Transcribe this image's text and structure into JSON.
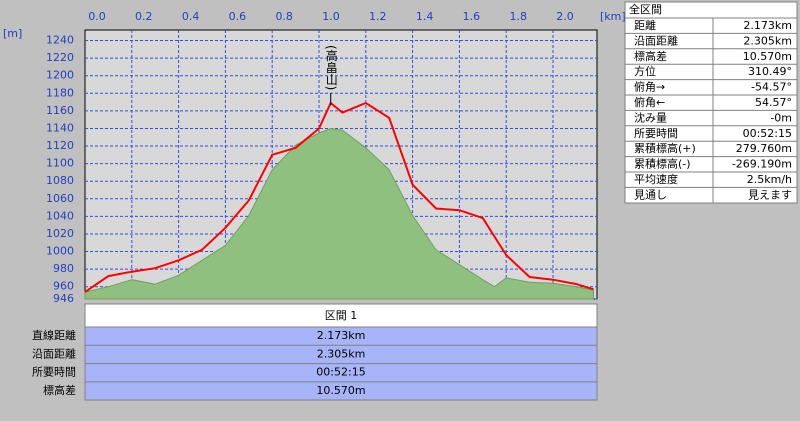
{
  "chart_data": {
    "type": "line",
    "xlabel": "[km]",
    "ylabel": "[m]",
    "x": [
      0,
      0.1,
      0.2,
      0.3,
      0.4,
      0.5,
      0.6,
      0.7,
      0.8,
      0.9,
      1.0,
      1.05,
      1.1,
      1.2,
      1.3,
      1.4,
      1.5,
      1.6,
      1.7,
      1.75,
      1.8,
      1.9,
      2.0,
      2.1,
      2.173
    ],
    "series": [
      {
        "color": "#90c080",
        "area": true,
        "values": [
          954,
          960,
          968,
          963,
          973,
          990,
          1007,
          1041,
          1093,
          1121,
          1135,
          1140,
          1138,
          1118,
          1093,
          1041,
          1002,
          985,
          968,
          960,
          970,
          965,
          964,
          960,
          956
        ]
      },
      {
        "color": "#ff0000",
        "area": false,
        "values": [
          954,
          972,
          977,
          981,
          990,
          1002,
          1027,
          1058,
          1110,
          1118,
          1140,
          1169,
          1158,
          1169,
          1152,
          1076,
          1049,
          1047,
          1038,
          1017,
          996,
          971,
          968,
          963,
          957
        ]
      }
    ],
    "xlim": [
      0,
      2.188
    ],
    "ylim": [
      946,
      1252
    ],
    "xticks": [
      {
        "value": 0,
        "label": "0.0"
      },
      0.2,
      0.4,
      0.6,
      0.8,
      {
        "value": 1,
        "label": "1.0"
      },
      1.2,
      1.4,
      1.6,
      1.8,
      {
        "value": 2,
        "label": "2.0"
      }
    ],
    "yticks": [
      946,
      960,
      980,
      1000,
      1020,
      1040,
      1060,
      1080,
      1100,
      1120,
      1140,
      1160,
      1180,
      1200,
      1220,
      1240
    ],
    "grid": true,
    "annotation": {
      "text": "(高畠山)",
      "x": 1.05
    }
  },
  "summary": {
    "title": "全区間",
    "rows": [
      [
        "距離",
        "2.173km"
      ],
      [
        "沿面距離",
        "2.305km"
      ],
      [
        "標高差",
        "10.570m"
      ],
      [
        "方位",
        "310.49°"
      ],
      [
        "俯角→",
        "-54.57°"
      ],
      [
        "俯角←",
        "54.57°"
      ],
      [
        "沈み量",
        "-0m"
      ],
      [
        "所要時間",
        "00:52:15"
      ],
      [
        "累積標高(+)",
        "279.760m"
      ],
      [
        "累積標高(-)",
        "-269.190m"
      ],
      [
        "平均速度",
        "2.5km/h"
      ],
      [
        "見通し",
        "見えます"
      ]
    ]
  },
  "section": {
    "title": "区間 1",
    "rows": [
      [
        "直線距離",
        "2.173km"
      ],
      [
        "沿面距離",
        "2.305km"
      ],
      [
        "所要時間",
        "00:52:15"
      ],
      [
        "標高差",
        "10.570m"
      ]
    ]
  }
}
